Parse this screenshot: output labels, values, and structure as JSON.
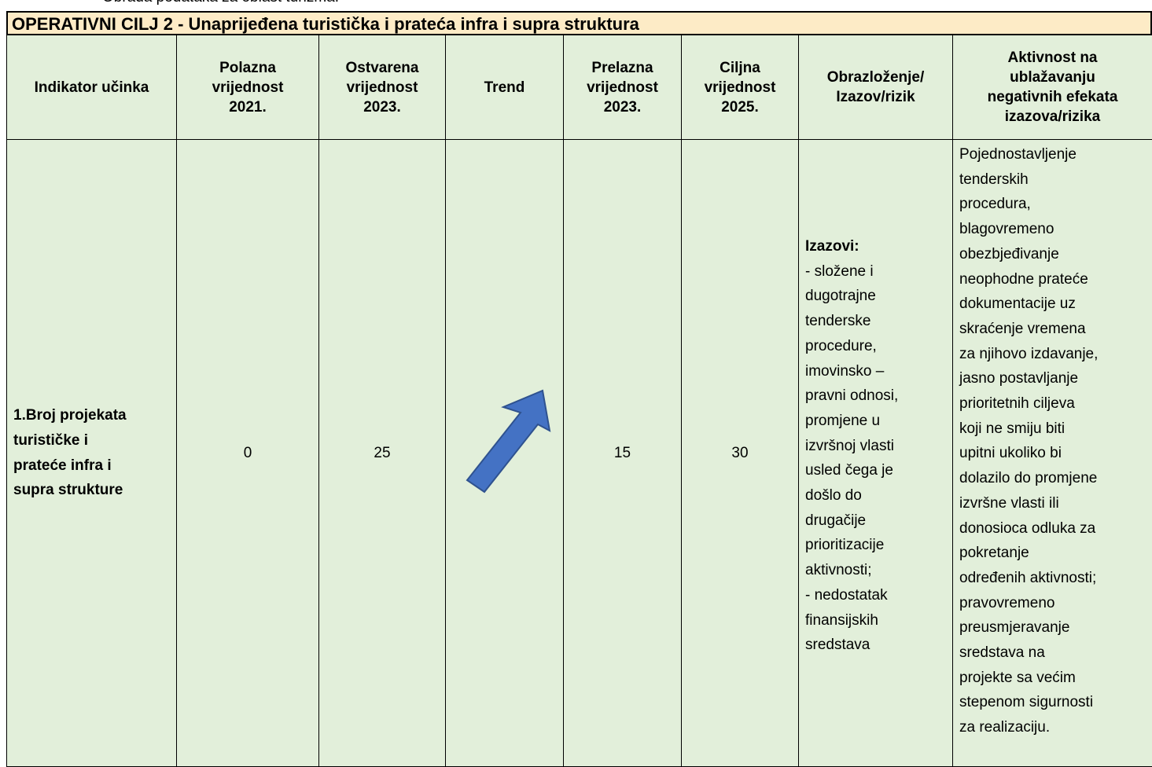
{
  "caption": "Obrada podataka za oblast turizma.",
  "table": {
    "title": "OPERATIVNI CILJ 2 - Unaprijeđena turistička i prateća infra i supra struktura",
    "headers": [
      [
        "Indikator učinka"
      ],
      [
        "Polazna",
        "vrijednost",
        "2021."
      ],
      [
        "Ostvarena",
        "vrijednost",
        "2023."
      ],
      [
        "Trend"
      ],
      [
        "Prelazna",
        "vrijednost",
        "2023."
      ],
      [
        "Ciljna",
        "vrijednost",
        "2025."
      ],
      [
        "Obrazloženje/",
        "Izazov/rizik"
      ],
      [
        "Aktivnost na",
        "ublažavanju",
        "negativnih efekata",
        "izazova/rizika"
      ]
    ],
    "rows": [
      {
        "indicator": [
          "1.Broj projekata",
          "turističke i",
          "prateće infra i",
          "supra strukture"
        ],
        "baseline": 0,
        "achieved": 25,
        "interim": 15,
        "target": 30,
        "explanation": {
          "heading": "Izazovi:",
          "lines": [
            "- složene i",
            "dugotrajne",
            "tenderske",
            "procedure,",
            "imovinsko –",
            "pravni odnosi,",
            "promjene u",
            "izvršnoj vlasti",
            "usled čega je",
            "došlo do",
            "drugačije",
            "prioritizacije",
            "aktivnosti;",
            "- nedostatak",
            "finansijskih",
            "sredstava"
          ]
        },
        "mitigation": [
          "Pojednostavljenje",
          "tenderskih",
          "procedura,",
          "blagovremeno",
          "obezbjeđivanje",
          "neophodne prateće",
          "dokumentacije uz",
          "skraćenje vremena",
          "za njihovo izdavanje,",
          "jasno postavljanje",
          "prioritetnih ciljeva",
          "koji ne smiju biti",
          "upitni ukoliko bi",
          "dolazilo do promjene",
          "izvršne vlasti ili",
          "donosioca odluka za",
          "pokretanje",
          "određenih aktivnosti;",
          "pravovremeno",
          "preusmjeravanje",
          "sredstava na",
          "projekte sa većim",
          "stepenom sigurnosti",
          "za realizaciju."
        ]
      }
    ]
  }
}
